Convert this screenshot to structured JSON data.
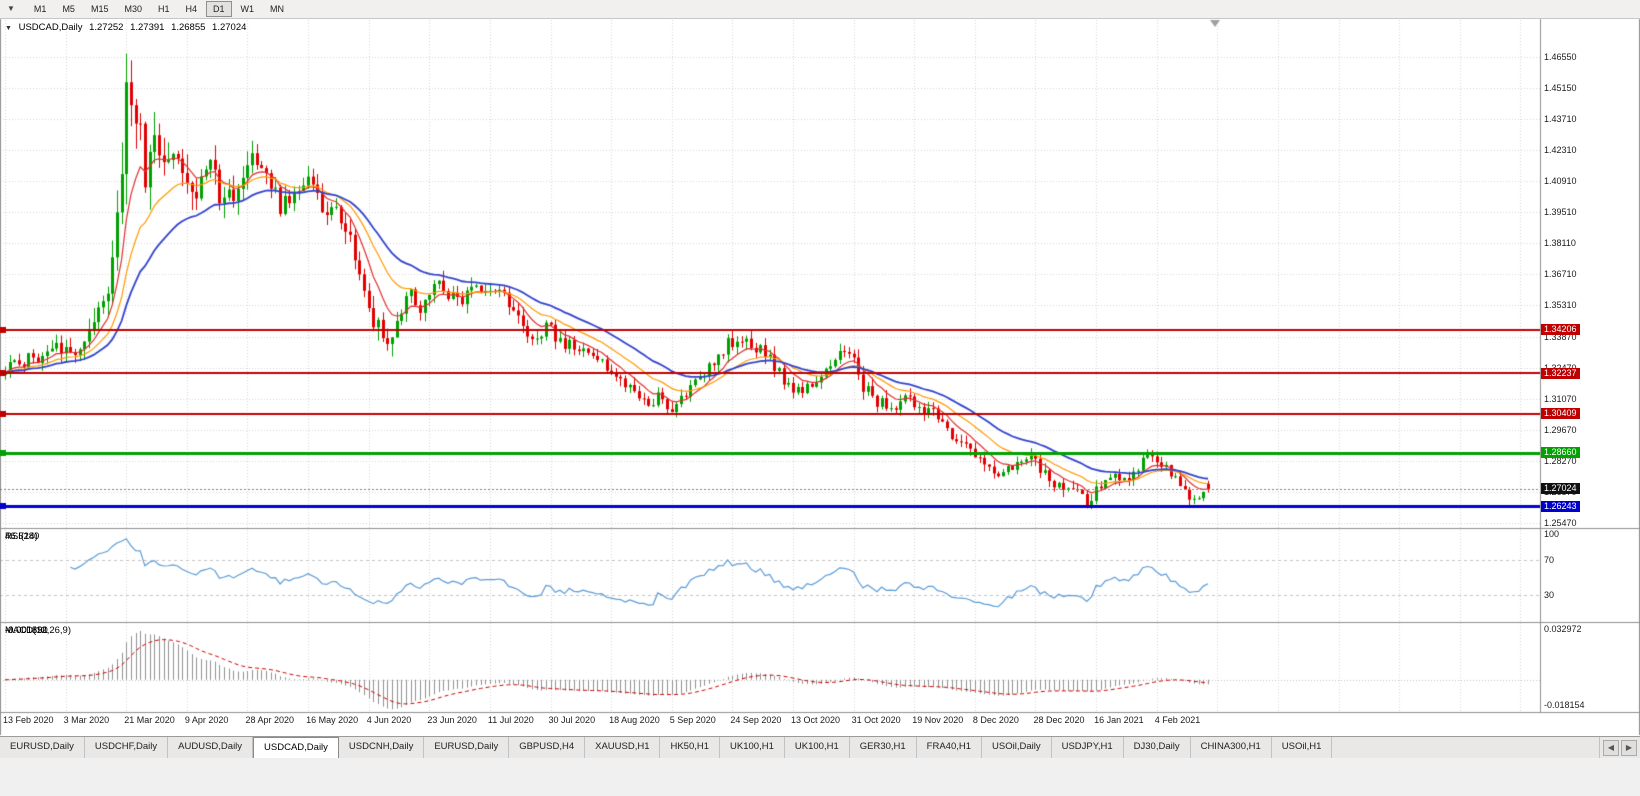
{
  "icons": {
    "dropdown": "▼",
    "tab_scroll_left": "◀",
    "tab_scroll_right": "▶"
  },
  "toolbar": {
    "timeframes": [
      "M1",
      "M5",
      "M15",
      "M30",
      "H1",
      "H4",
      "D1",
      "W1",
      "MN"
    ],
    "active_timeframe": "D1"
  },
  "chart": {
    "title": {
      "symbol": "USDCAD,Daily",
      "open": "1.27252",
      "high": "1.27391",
      "low": "1.26855",
      "close": "1.27024"
    },
    "price_axis": {
      "labels": [
        "1.46550",
        "1.45150",
        "1.43710",
        "1.42310",
        "1.40910",
        "1.39510",
        "1.38110",
        "1.36710",
        "1.35310",
        "1.33870",
        "1.32470",
        "1.31070",
        "1.29670",
        "1.28270",
        "1.26870",
        "1.25470"
      ],
      "badges": [
        {
          "label": "1.34206",
          "price": 1.34206,
          "bg": "#c00000"
        },
        {
          "label": "1.32237",
          "price": 1.32237,
          "bg": "#c00000"
        },
        {
          "label": "1.30409",
          "price": 1.30409,
          "bg": "#c00000"
        },
        {
          "label": "1.28660",
          "price": 1.2866,
          "bg": "#00a100"
        },
        {
          "label": "1.27024",
          "price": 1.27024,
          "bg": "#101010"
        },
        {
          "label": "1.26243",
          "price": 1.26243,
          "bg": "#0000cc"
        }
      ]
    },
    "time_axis": {
      "labels": [
        "13 Feb 2020",
        "3 Mar 2020",
        "21 Mar 2020",
        "9 Apr 2020",
        "28 Apr 2020",
        "16 May 2020",
        "4 Jun 2020",
        "23 Jun 2020",
        "11 Jul 2020",
        "30 Jul 2020",
        "18 Aug 2020",
        "5 Sep 2020",
        "24 Sep 2020",
        "13 Oct 2020",
        "31 Oct 2020",
        "19 Nov 2020",
        "8 Dec 2020",
        "28 Dec 2020",
        "16 Jan 2021",
        "4 Feb 2021"
      ]
    },
    "sr_lines": [
      {
        "price": 1.34206,
        "color": "#c00000",
        "width": 2
      },
      {
        "price": 1.32237,
        "color": "#c00000",
        "width": 2
      },
      {
        "price": 1.30409,
        "color": "#c00000",
        "width": 2
      },
      {
        "price": 1.2866,
        "color": "#00a100",
        "width": 3
      },
      {
        "price": 1.26243,
        "color": "#0000cc",
        "width": 3
      }
    ],
    "current_price": {
      "price": 1.27024,
      "color": "#808080"
    },
    "indicators": {
      "rsi": {
        "label": "RSI(14)",
        "value": "46.5280",
        "levels": [
          "100",
          "70",
          "30"
        ],
        "level_values": [
          100,
          70,
          30
        ],
        "color": "#5b9bd5"
      },
      "macd": {
        "label": "MACD(12,26,9)",
        "value_main": "-0.001891",
        "value_signal": "-0.001330",
        "axis_max": "0.032972",
        "axis_min": "-0.018154"
      }
    }
  },
  "chart_data": {
    "type": "candlestick",
    "symbol": "USDCAD",
    "timeframe": "Daily",
    "visible_range": {
      "price_min": 1.253,
      "price_max": 1.482
    },
    "num_candles": 259,
    "label_every": 13,
    "up_color": "#00a000",
    "down_color": "#e00000",
    "peak": {
      "index": 26,
      "high": 1.4668
    },
    "last_candle": {
      "open": 1.27252,
      "high": 1.27391,
      "low": 1.26855,
      "close": 1.27024
    },
    "close_anchors": [
      [
        0,
        1.325
      ],
      [
        5,
        1.3285
      ],
      [
        10,
        1.332
      ],
      [
        13,
        1.336
      ],
      [
        16,
        1.33
      ],
      [
        19,
        1.342
      ],
      [
        22,
        1.362
      ],
      [
        24,
        1.398
      ],
      [
        26,
        1.448
      ],
      [
        28,
        1.438
      ],
      [
        30,
        1.412
      ],
      [
        32,
        1.43
      ],
      [
        34,
        1.418
      ],
      [
        36,
        1.428
      ],
      [
        39,
        1.415
      ],
      [
        41,
        1.405
      ],
      [
        44,
        1.418
      ],
      [
        47,
        1.398
      ],
      [
        50,
        1.408
      ],
      [
        53,
        1.417
      ],
      [
        56,
        1.412
      ],
      [
        59,
        1.398
      ],
      [
        62,
        1.402
      ],
      [
        65,
        1.408
      ],
      [
        68,
        1.399
      ],
      [
        71,
        1.394
      ],
      [
        74,
        1.384
      ],
      [
        77,
        1.356
      ],
      [
        80,
        1.343
      ],
      [
        83,
        1.339
      ],
      [
        86,
        1.359
      ],
      [
        89,
        1.354
      ],
      [
        92,
        1.364
      ],
      [
        95,
        1.358
      ],
      [
        98,
        1.356
      ],
      [
        101,
        1.359
      ],
      [
        104,
        1.361
      ],
      [
        107,
        1.356
      ],
      [
        110,
        1.346
      ],
      [
        113,
        1.339
      ],
      [
        116,
        1.343
      ],
      [
        119,
        1.338
      ],
      [
        122,
        1.333
      ],
      [
        125,
        1.33
      ],
      [
        128,
        1.326
      ],
      [
        131,
        1.322
      ],
      [
        134,
        1.316
      ],
      [
        137,
        1.308
      ],
      [
        140,
        1.312
      ],
      [
        143,
        1.307
      ],
      [
        146,
        1.313
      ],
      [
        149,
        1.319
      ],
      [
        152,
        1.328
      ],
      [
        155,
        1.336
      ],
      [
        158,
        1.34
      ],
      [
        161,
        1.335
      ],
      [
        164,
        1.329
      ],
      [
        167,
        1.32
      ],
      [
        170,
        1.314
      ],
      [
        173,
        1.316
      ],
      [
        176,
        1.324
      ],
      [
        179,
        1.331
      ],
      [
        182,
        1.33
      ],
      [
        184,
        1.317
      ],
      [
        187,
        1.31
      ],
      [
        190,
        1.306
      ],
      [
        193,
        1.313
      ],
      [
        196,
        1.307
      ],
      [
        199,
        1.304
      ],
      [
        202,
        1.297
      ],
      [
        205,
        1.291
      ],
      [
        208,
        1.286
      ],
      [
        211,
        1.28
      ],
      [
        214,
        1.276
      ],
      [
        217,
        1.283
      ],
      [
        220,
        1.287
      ],
      [
        223,
        1.276
      ],
      [
        226,
        1.271
      ],
      [
        229,
        1.269
      ],
      [
        232,
        1.264
      ],
      [
        235,
        1.271
      ],
      [
        238,
        1.276
      ],
      [
        241,
        1.274
      ],
      [
        244,
        1.284
      ],
      [
        246,
        1.287
      ],
      [
        248,
        1.281
      ],
      [
        251,
        1.276
      ],
      [
        254,
        1.267
      ],
      [
        256,
        1.265
      ],
      [
        258,
        1.27024
      ]
    ],
    "volatility_anchors": [
      [
        0,
        0.006
      ],
      [
        15,
        0.0085
      ],
      [
        21,
        0.015
      ],
      [
        26,
        0.032
      ],
      [
        30,
        0.024
      ],
      [
        36,
        0.017
      ],
      [
        44,
        0.013
      ],
      [
        55,
        0.011
      ],
      [
        70,
        0.01
      ],
      [
        80,
        0.011
      ],
      [
        95,
        0.0085
      ],
      [
        110,
        0.007
      ],
      [
        130,
        0.0065
      ],
      [
        150,
        0.007
      ],
      [
        160,
        0.0075
      ],
      [
        175,
        0.006
      ],
      [
        185,
        0.0075
      ],
      [
        200,
        0.006
      ],
      [
        215,
        0.006
      ],
      [
        225,
        0.0065
      ],
      [
        235,
        0.006
      ],
      [
        245,
        0.0055
      ],
      [
        258,
        0.005
      ]
    ],
    "moving_averages": [
      {
        "name": "ma-fast",
        "period": 8,
        "color": "#e03030",
        "width": 1.2
      },
      {
        "name": "ma-medium",
        "period": 17,
        "color": "#ff9900",
        "width": 1.2
      },
      {
        "name": "ma-slow",
        "period": 30,
        "color": "#3344cc",
        "width": 1.8
      }
    ],
    "rsi_period": 14,
    "macd_params": [
      12,
      26,
      9
    ],
    "macd_range": [
      -0.018154,
      0.032972
    ]
  },
  "tabs": {
    "active_index": 3,
    "items": [
      "EURUSD,Daily",
      "USDCHF,Daily",
      "AUDUSD,Daily",
      "USDCAD,Daily",
      "USDCNH,Daily",
      "EURUSD,Daily",
      "GBPUSD,H4",
      "XAUUSD,H1",
      "HK50,H1",
      "UK100,H1",
      "UK100,H1",
      "GER30,H1",
      "FRA40,H1",
      "USOil,Daily",
      "USDJPY,H1",
      "DJ30,Daily",
      "CHINA300,H1",
      "USOil,H1"
    ]
  }
}
